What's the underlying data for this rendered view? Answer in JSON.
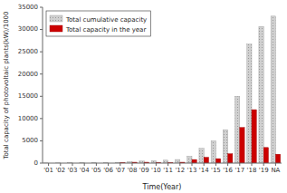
{
  "chart_data": {
    "type": "bar",
    "categories": [
      "'01",
      "'02",
      "'03",
      "'04",
      "'05",
      "'06",
      "'07",
      "'08",
      "'09",
      "'10",
      "'11",
      "'12",
      "'13",
      "'14",
      "'15",
      "'16",
      "'17",
      "'18",
      "'19",
      "NA"
    ],
    "series": [
      {
        "name": "Total cumulative capacity",
        "color": "#d0d0d0",
        "values": [
          30,
          40,
          50,
          60,
          80,
          100,
          150,
          300,
          450,
          560,
          650,
          800,
          1500,
          3300,
          5000,
          7500,
          15000,
          26700,
          30700,
          33000
        ]
      },
      {
        "name": "Total capacity in the year",
        "color": "#cc0000",
        "values": [
          0,
          0,
          0,
          0,
          0,
          0,
          120,
          200,
          200,
          150,
          120,
          200,
          800,
          1300,
          1000,
          2100,
          8000,
          12000,
          3500,
          2000
        ]
      }
    ],
    "xlabel": "Time(Year)",
    "ylabel": "Total capacity of photovoltaic plants(kW)/1000",
    "ylim": [
      0,
      35000
    ],
    "yticks": [
      0,
      5000,
      10000,
      15000,
      20000,
      25000,
      30000,
      35000
    ],
    "legend": "upper left",
    "grid": false
  }
}
